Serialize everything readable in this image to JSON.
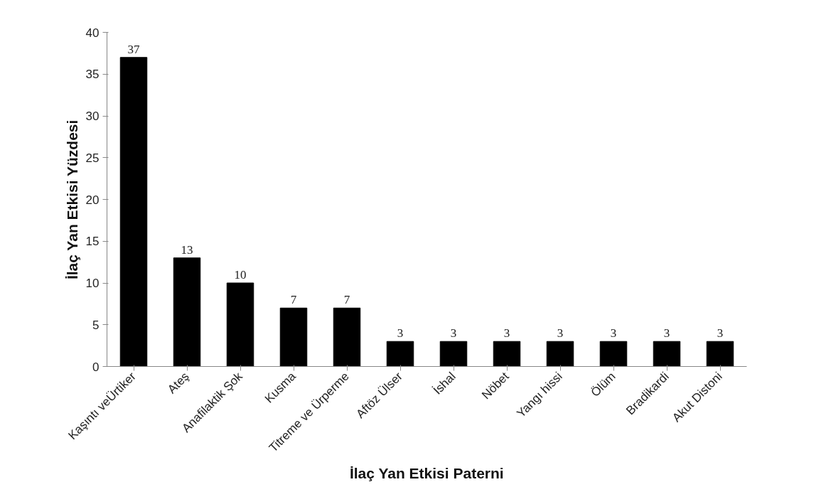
{
  "chart_data": {
    "type": "bar",
    "xlabel": "İlaç Yan Etkisi Paterni",
    "ylabel": "İlaç Yan Etkisi Yüzdesi",
    "categories": [
      "Kaşıntı veÜrtiker",
      "Ateş",
      "Anafilaktik Şok",
      "Kusma",
      "Titreme ve Ürperme",
      "Aftöz Ülser",
      "İshal",
      "Nöbet",
      "Yangı hissi",
      "Ölüm",
      "Bradikardi",
      "Akut Distoni"
    ],
    "values": [
      37,
      13,
      10,
      7,
      7,
      3,
      3,
      3,
      3,
      3,
      3,
      3
    ],
    "color": "#000000",
    "ylim": [
      0,
      40
    ],
    "yticks": [
      0,
      5,
      10,
      15,
      20,
      25,
      30,
      35,
      40
    ],
    "grid": false,
    "data_labels": true
  }
}
